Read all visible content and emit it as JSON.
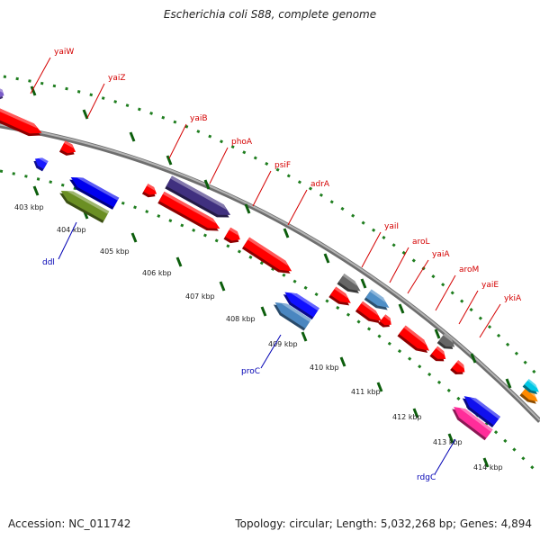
{
  "title": "Escherichia coli S88, complete genome",
  "footer": {
    "accession": "Accession: NC_011742",
    "summary": "Topology: circular; Length: 5,032,268 bp; Genes: 4,894"
  },
  "colors": {
    "backbone": "#8a8a8a",
    "tick_dots": "#1e7d1e",
    "top_gene_label": "#d40000",
    "bottom_gene_label": "#0000b4"
  },
  "kbp_labels": [
    "403 kbp",
    "404 kbp",
    "405 kbp",
    "406 kbp",
    "407 kbp",
    "408 kbp",
    "409 kbp",
    "410 kbp",
    "411 kbp",
    "412 kbp",
    "413 kbp",
    "414 kbp"
  ],
  "top_gene_labels": [
    "yaiW",
    "yaiZ",
    "yaiB",
    "phoA",
    "psiF",
    "adrA",
    "yaiI",
    "aroL",
    "yaiA",
    "aroM",
    "yaiE",
    "ykiA"
  ],
  "bottom_gene_labels": [
    "ddl",
    "proC",
    "rdgC"
  ],
  "features": [
    {
      "strand": "forward",
      "color": "#ff0000"
    },
    {
      "strand": "forward",
      "color": "#ff0000"
    },
    {
      "strand": "forward",
      "color": "#ff0000"
    },
    {
      "strand": "forward",
      "color": "#40307f"
    },
    {
      "strand": "forward",
      "color": "#ff0000"
    },
    {
      "strand": "forward",
      "color": "#ff0000"
    },
    {
      "strand": "forward",
      "color": "#ff0000"
    },
    {
      "strand": "forward",
      "color": "#666666"
    },
    {
      "strand": "forward",
      "color": "#4f8fc7"
    },
    {
      "strand": "forward",
      "color": "#ff0000"
    },
    {
      "strand": "forward",
      "color": "#ff0000"
    },
    {
      "strand": "forward",
      "color": "#ff0000"
    },
    {
      "strand": "forward",
      "color": "#666666"
    },
    {
      "strand": "forward",
      "color": "#ff0000"
    },
    {
      "strand": "forward",
      "color": "#ff0000"
    },
    {
      "strand": "forward",
      "color": "#ff0000"
    },
    {
      "strand": "forward",
      "color": "#ff8a00"
    },
    {
      "strand": "forward",
      "color": "#00c8e6"
    },
    {
      "strand": "reverse",
      "color": "#1a1aff"
    },
    {
      "strand": "reverse",
      "color": "#0000ee"
    },
    {
      "strand": "reverse",
      "color": "#6b8f23"
    },
    {
      "strand": "reverse",
      "color": "#1010ff"
    },
    {
      "strand": "reverse",
      "color": "#4a86c0"
    },
    {
      "strand": "reverse",
      "color": "#1010ee"
    },
    {
      "strand": "reverse",
      "color": "#ff2d9a"
    },
    {
      "strand": "forward",
      "color": "#7a5cc8"
    }
  ]
}
